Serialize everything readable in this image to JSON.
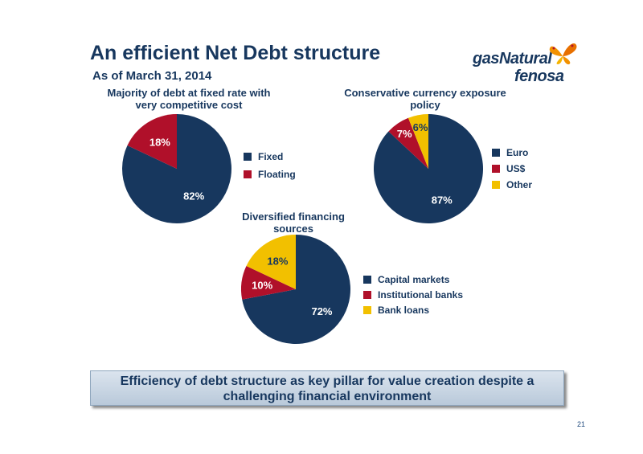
{
  "title": "An efficient Net Debt structure",
  "subtitle": "As of March 31, 2014",
  "logo": {
    "line1": "gasNatural",
    "line2": "fenosa"
  },
  "colors": {
    "navy": "#17375e",
    "red": "#b0102a",
    "yellow": "#f2c000"
  },
  "callout": "Efficiency of debt structure as key pillar for value creation despite a challenging financial environment",
  "page_number": "21",
  "chart_data": [
    {
      "type": "pie",
      "title": "Majority of debt at fixed rate with very competitive cost",
      "slices": [
        {
          "label": "Fixed",
          "value": 82,
          "display": "82%",
          "color": "#17375e"
        },
        {
          "label": "Floating",
          "value": 18,
          "display": "18%",
          "color": "#b0102a"
        }
      ],
      "legend_position": "right"
    },
    {
      "type": "pie",
      "title": "Conservative currency exposure policy",
      "slices": [
        {
          "label": "Euro",
          "value": 87,
          "display": "87%",
          "color": "#17375e"
        },
        {
          "label": "US$",
          "value": 7,
          "display": "7%",
          "color": "#b0102a"
        },
        {
          "label": "Other",
          "value": 6,
          "display": "6%",
          "color": "#f2c000"
        }
      ],
      "legend_position": "right"
    },
    {
      "type": "pie",
      "title": "Diversified financing sources",
      "slices": [
        {
          "label": "Capital markets",
          "value": 72,
          "display": "72%",
          "color": "#17375e"
        },
        {
          "label": "Institutional banks",
          "value": 10,
          "display": "10%",
          "color": "#b0102a"
        },
        {
          "label": "Bank loans",
          "value": 18,
          "display": "18%",
          "color": "#f2c000"
        }
      ],
      "legend_position": "right"
    }
  ]
}
